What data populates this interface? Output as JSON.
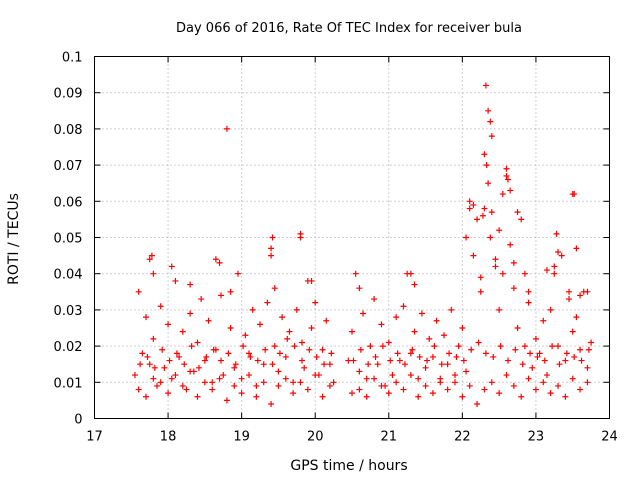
{
  "chart_data": {
    "type": "scatter",
    "title": "Day 066 of 2016, Rate Of TEC Index for receiver bula",
    "xlabel": "GPS time / hours",
    "ylabel": "ROTI / TECUs",
    "xlim": [
      17,
      24
    ],
    "ylim": [
      0,
      0.1
    ],
    "xticks": [
      "17",
      "18",
      "19",
      "20",
      "21",
      "22",
      "23",
      "24"
    ],
    "yticks": [
      "0",
      "0.01",
      "0.02",
      "0.03",
      "0.04",
      "0.05",
      "0.06",
      "0.07",
      "0.08",
      "0.09",
      "0.1"
    ],
    "grid": true,
    "marker": "+",
    "color": "#ff0000",
    "series": [
      {
        "name": "ROTI",
        "x": [
          17.55,
          17.6,
          17.65,
          17.7,
          17.75,
          17.78,
          17.8,
          17.85,
          17.9,
          17.95,
          18.0,
          18.05,
          18.1,
          18.15,
          18.2,
          18.25,
          18.3,
          18.35,
          18.4,
          18.45,
          18.5,
          18.55,
          18.6,
          18.65,
          18.7,
          18.72,
          18.75,
          18.8,
          18.85,
          18.9,
          18.95,
          19.0,
          19.05,
          19.1,
          19.15,
          19.2,
          19.25,
          19.3,
          19.35,
          19.4,
          19.42,
          19.45,
          19.5,
          19.55,
          19.6,
          19.65,
          19.7,
          19.75,
          19.8,
          19.82,
          19.85,
          19.9,
          19.95,
          20.0,
          20.05,
          20.1,
          20.15,
          20.2,
          20.25,
          20.45,
          20.5,
          20.55,
          20.6,
          20.65,
          20.7,
          20.75,
          20.8,
          20.85,
          20.9,
          20.95,
          21.0,
          21.05,
          21.1,
          21.15,
          21.2,
          21.25,
          21.3,
          21.35,
          21.4,
          21.45,
          21.5,
          21.55,
          21.6,
          21.65,
          21.7,
          21.75,
          21.8,
          21.85,
          21.9,
          21.95,
          22.0,
          22.05,
          22.1,
          22.15,
          22.2,
          22.25,
          22.3,
          22.32,
          22.35,
          22.38,
          22.4,
          22.45,
          22.5,
          22.55,
          22.6,
          22.65,
          22.7,
          22.75,
          22.8,
          22.85,
          22.9,
          22.95,
          23.0,
          23.05,
          23.1,
          23.15,
          23.2,
          23.25,
          23.3,
          23.35,
          23.4,
          23.45,
          23.5,
          23.52,
          23.55,
          23.6,
          23.65,
          23.7,
          23.75,
          17.6,
          17.7,
          17.8,
          17.9,
          18.0,
          18.1,
          18.2,
          18.3,
          18.4,
          18.5,
          18.6,
          18.7,
          18.8,
          18.9,
          19.0,
          19.1,
          19.2,
          19.3,
          19.4,
          19.5,
          19.6,
          19.7,
          19.8,
          19.9,
          20.0,
          20.1,
          20.2,
          20.5,
          20.6,
          20.7,
          20.8,
          20.9,
          21.0,
          21.1,
          21.2,
          21.3,
          21.4,
          21.5,
          21.6,
          21.7,
          21.8,
          21.9,
          22.0,
          22.1,
          22.2,
          22.3,
          22.4,
          22.5,
          22.6,
          22.7,
          22.8,
          22.9,
          23.0,
          23.1,
          23.2,
          23.3,
          23.4,
          23.5,
          23.6,
          23.7,
          17.62,
          17.72,
          17.82,
          17.92,
          18.02,
          18.12,
          18.22,
          18.32,
          18.42,
          18.52,
          18.62,
          18.72,
          18.82,
          18.92,
          19.02,
          19.12,
          19.22,
          19.32,
          19.42,
          19.52,
          19.62,
          19.72,
          19.82,
          19.92,
          20.02,
          20.12,
          20.22,
          20.52,
          20.62,
          20.72,
          20.82,
          20.92,
          21.02,
          21.12,
          21.22,
          21.32,
          21.42,
          21.52,
          21.62,
          21.72,
          21.82,
          21.92,
          22.02,
          22.12,
          22.22,
          22.32,
          22.42,
          22.52,
          22.62,
          22.72,
          22.82,
          22.92,
          23.02,
          23.12,
          23.22,
          23.32,
          23.42,
          23.52,
          23.62,
          23.72,
          17.75,
          17.8,
          18.05,
          18.3,
          18.65,
          18.85,
          19.4,
          19.45,
          19.8,
          19.95,
          20.6,
          21.3,
          21.35,
          22.05,
          22.1,
          22.15,
          22.25,
          22.28,
          22.3,
          22.33,
          22.35,
          22.38,
          22.4,
          22.45,
          22.5,
          22.55,
          22.6,
          22.62,
          22.65,
          22.7,
          22.75,
          22.85,
          22.9,
          23.15,
          23.25,
          23.28,
          23.3,
          23.45,
          23.5,
          23.55,
          23.6,
          23.7
        ],
        "y": [
          0.012,
          0.035,
          0.018,
          0.028,
          0.015,
          0.045,
          0.022,
          0.009,
          0.031,
          0.014,
          0.026,
          0.011,
          0.038,
          0.017,
          0.024,
          0.008,
          0.029,
          0.013,
          0.021,
          0.033,
          0.016,
          0.027,
          0.01,
          0.019,
          0.043,
          0.034,
          0.012,
          0.08,
          0.025,
          0.014,
          0.04,
          0.011,
          0.023,
          0.018,
          0.03,
          0.009,
          0.026,
          0.015,
          0.032,
          0.047,
          0.05,
          0.02,
          0.013,
          0.028,
          0.017,
          0.024,
          0.01,
          0.03,
          0.051,
          0.021,
          0.014,
          0.038,
          0.025,
          0.032,
          0.012,
          0.019,
          0.027,
          0.015,
          0.01,
          0.016,
          0.024,
          0.04,
          0.013,
          0.029,
          0.011,
          0.02,
          0.033,
          0.015,
          0.026,
          0.009,
          0.021,
          0.012,
          0.028,
          0.016,
          0.031,
          0.04,
          0.018,
          0.024,
          0.011,
          0.029,
          0.014,
          0.022,
          0.017,
          0.027,
          0.01,
          0.023,
          0.015,
          0.03,
          0.012,
          0.02,
          0.025,
          0.013,
          0.06,
          0.045,
          0.055,
          0.035,
          0.058,
          0.092,
          0.085,
          0.082,
          0.078,
          0.042,
          0.03,
          0.062,
          0.067,
          0.048,
          0.036,
          0.025,
          0.055,
          0.02,
          0.032,
          0.014,
          0.022,
          0.018,
          0.027,
          0.012,
          0.03,
          0.04,
          0.02,
          0.045,
          0.016,
          0.033,
          0.024,
          0.062,
          0.028,
          0.019,
          0.035,
          0.014,
          0.021,
          0.008,
          0.006,
          0.011,
          0.01,
          0.007,
          0.012,
          0.009,
          0.013,
          0.006,
          0.01,
          0.008,
          0.011,
          0.005,
          0.009,
          0.007,
          0.012,
          0.006,
          0.01,
          0.004,
          0.009,
          0.011,
          0.007,
          0.01,
          0.008,
          0.012,
          0.006,
          0.009,
          0.007,
          0.008,
          0.006,
          0.011,
          0.009,
          0.007,
          0.01,
          0.008,
          0.012,
          0.006,
          0.009,
          0.007,
          0.011,
          0.008,
          0.01,
          0.006,
          0.009,
          0.004,
          0.008,
          0.01,
          0.007,
          0.012,
          0.009,
          0.006,
          0.011,
          0.008,
          0.01,
          0.007,
          0.009,
          0.006,
          0.011,
          0.008,
          0.01,
          0.015,
          0.017,
          0.014,
          0.019,
          0.016,
          0.018,
          0.015,
          0.02,
          0.014,
          0.017,
          0.019,
          0.016,
          0.018,
          0.015,
          0.02,
          0.017,
          0.016,
          0.019,
          0.015,
          0.018,
          0.022,
          0.02,
          0.016,
          0.019,
          0.017,
          0.015,
          0.018,
          0.016,
          0.019,
          0.015,
          0.017,
          0.02,
          0.016,
          0.018,
          0.015,
          0.019,
          0.017,
          0.016,
          0.02,
          0.015,
          0.018,
          0.017,
          0.016,
          0.019,
          0.021,
          0.018,
          0.017,
          0.02,
          0.016,
          0.019,
          0.015,
          0.018,
          0.017,
          0.016,
          0.02,
          0.015,
          0.018,
          0.017,
          0.016,
          0.019,
          0.044,
          0.04,
          0.042,
          0.037,
          0.044,
          0.035,
          0.045,
          0.036,
          0.05,
          0.038,
          0.036,
          0.04,
          0.037,
          0.05,
          0.058,
          0.059,
          0.039,
          0.056,
          0.073,
          0.07,
          0.065,
          0.05,
          0.057,
          0.044,
          0.052,
          0.04,
          0.069,
          0.066,
          0.063,
          0.043,
          0.057,
          0.04,
          0.035,
          0.041,
          0.042,
          0.051,
          0.046,
          0.035,
          0.062,
          0.047,
          0.034,
          0.035
        ]
      }
    ]
  }
}
